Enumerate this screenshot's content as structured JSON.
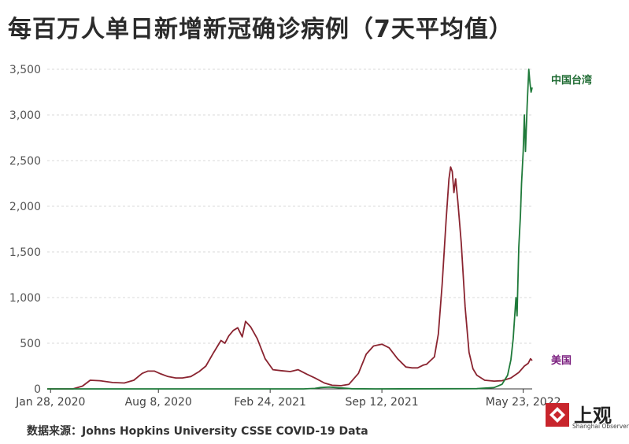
{
  "header": {
    "title": "每百万人单日新增新冠确诊病例（7天平均值）"
  },
  "footer": {
    "source": "数据来源：Johns Hopkins University CSSE COVID-19 Data"
  },
  "logo": {
    "name_cn": "上观",
    "name_en": "Shanghai Observer"
  },
  "colors": {
    "us": "#8a2430",
    "taiwan": "#1f7a3a",
    "us_label": "#7b1f7f",
    "taiwan_label": "#1f6b33",
    "grid": "#d9d9d9"
  },
  "chart_data": {
    "type": "line",
    "title": "每百万人单日新增新冠确诊病例（7天平均值）",
    "x_range": [
      "2020-01-22",
      "2022-06-08"
    ],
    "x_ticks": [
      "2020-01-28",
      "2020-08-08",
      "2021-02-24",
      "2021-09-12",
      "2022-05-23"
    ],
    "x_tick_labels": [
      "Jan 28, 2020",
      "Aug 8, 2020",
      "Feb 24, 2021",
      "Sep 12, 2021",
      "May 23, 2022"
    ],
    "ylim": [
      0,
      3500
    ],
    "y_ticks": [
      0,
      500,
      1000,
      1500,
      2000,
      2500,
      3000,
      3500
    ],
    "y_tick_labels": [
      "0",
      "500",
      "1,000",
      "1,500",
      "2,000",
      "2,500",
      "3,000",
      "3,500"
    ],
    "grid": true,
    "legend": "inline-right",
    "series": [
      {
        "name": "美国",
        "x": [
          "2020-01-22",
          "2020-03-08",
          "2020-03-25",
          "2020-04-08",
          "2020-04-25",
          "2020-05-18",
          "2020-06-08",
          "2020-06-25",
          "2020-07-10",
          "2020-07-20",
          "2020-08-01",
          "2020-08-12",
          "2020-08-25",
          "2020-09-08",
          "2020-09-20",
          "2020-10-05",
          "2020-10-20",
          "2020-11-01",
          "2020-11-15",
          "2020-11-28",
          "2020-12-05",
          "2020-12-12",
          "2020-12-20",
          "2020-12-28",
          "2021-01-05",
          "2021-01-11",
          "2021-01-20",
          "2021-02-01",
          "2021-02-15",
          "2021-03-01",
          "2021-03-15",
          "2021-04-01",
          "2021-04-15",
          "2021-05-01",
          "2021-05-15",
          "2021-06-01",
          "2021-06-15",
          "2021-07-01",
          "2021-07-15",
          "2021-08-01",
          "2021-08-15",
          "2021-08-28",
          "2021-09-05",
          "2021-09-12",
          "2021-09-25",
          "2021-10-10",
          "2021-10-25",
          "2021-11-05",
          "2021-11-15",
          "2021-11-25",
          "2021-12-01",
          "2021-12-08",
          "2021-12-15",
          "2021-12-22",
          "2021-12-29",
          "2022-01-05",
          "2022-01-10",
          "2022-01-13",
          "2022-01-16",
          "2022-01-19",
          "2022-01-22",
          "2022-01-26",
          "2022-02-01",
          "2022-02-08",
          "2022-02-15",
          "2022-02-22",
          "2022-03-01",
          "2022-03-15",
          "2022-04-01",
          "2022-04-15",
          "2022-05-01",
          "2022-05-15",
          "2022-05-25",
          "2022-06-01",
          "2022-06-05",
          "2022-06-08"
        ],
        "y": [
          0,
          0,
          30,
          95,
          90,
          70,
          65,
          95,
          170,
          195,
          195,
          165,
          135,
          120,
          120,
          135,
          190,
          250,
          400,
          530,
          500,
          580,
          640,
          670,
          570,
          740,
          680,
          550,
          330,
          210,
          200,
          190,
          210,
          160,
          120,
          65,
          40,
          35,
          50,
          170,
          380,
          470,
          480,
          490,
          450,
          330,
          240,
          230,
          230,
          260,
          270,
          310,
          350,
          600,
          1150,
          1850,
          2300,
          2430,
          2380,
          2150,
          2300,
          2050,
          1600,
          900,
          400,
          220,
          150,
          95,
          85,
          90,
          120,
          180,
          250,
          280,
          330,
          310
        ]
      },
      {
        "name": "中国台湾",
        "x": [
          "2020-01-22",
          "2021-04-25",
          "2021-05-15",
          "2021-05-25",
          "2021-06-10",
          "2021-07-01",
          "2021-07-20",
          "2021-09-01",
          "2022-01-01",
          "2022-03-01",
          "2022-04-01",
          "2022-04-15",
          "2022-04-25",
          "2022-05-01",
          "2022-05-05",
          "2022-05-10",
          "2022-05-12",
          "2022-05-15",
          "2022-05-18",
          "2022-05-20",
          "2022-05-23",
          "2022-05-25",
          "2022-05-27",
          "2022-05-30",
          "2022-06-02",
          "2022-06-04",
          "2022-06-06",
          "2022-06-08"
        ],
        "y": [
          0,
          0,
          5,
          15,
          20,
          10,
          2,
          0,
          2,
          3,
          15,
          50,
          150,
          320,
          550,
          1000,
          800,
          1550,
          1900,
          2250,
          2600,
          3000,
          2600,
          3100,
          3500,
          3350,
          3250,
          3300
        ]
      }
    ]
  }
}
